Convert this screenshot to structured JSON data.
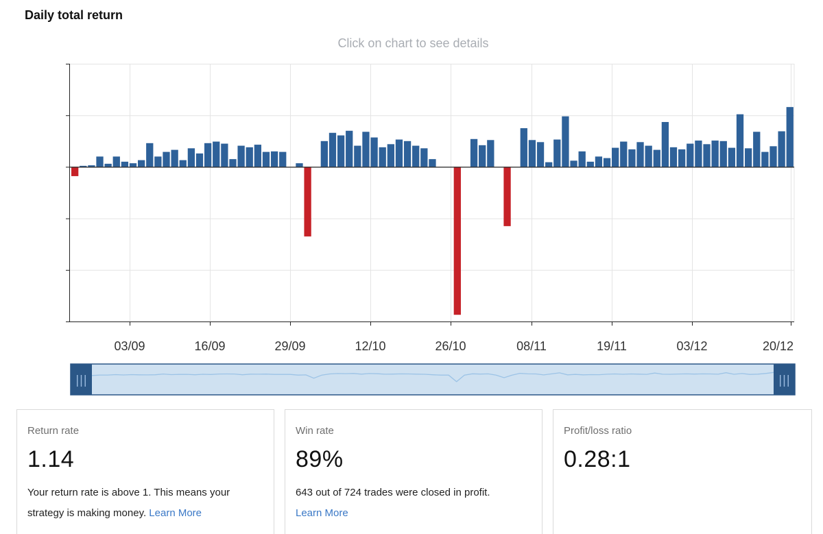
{
  "title": "Daily total return",
  "hint": "Click on chart to see details",
  "colors": {
    "positive": "#2e6199",
    "negative": "#c62127",
    "grid": "#e4e4e4",
    "axis": "#222222",
    "navigator_fill": "#cfe1f1",
    "navigator_border": "#2b5787",
    "navigator_handle": "#2b5787",
    "navigator_line": "#9cc3e6",
    "link": "#3a78c6"
  },
  "chart_data": {
    "type": "bar",
    "title": "Daily total return",
    "xlabel": "",
    "ylabel": "",
    "x_tick_labels": [
      "03/09",
      "16/09",
      "29/09",
      "12/10",
      "26/10",
      "08/11",
      "19/11",
      "03/12",
      "20/12"
    ],
    "y_ticks": [
      2,
      1,
      0,
      -1,
      -2,
      -3
    ],
    "ylim": [
      -3,
      2
    ],
    "y_tick_labels_visible": false,
    "grid": true,
    "values": [
      -0.18,
      0.02,
      0.03,
      0.2,
      0.06,
      0.2,
      0.1,
      0.07,
      0.13,
      0.46,
      0.2,
      0.29,
      0.33,
      0.13,
      0.36,
      0.26,
      0.46,
      0.49,
      0.45,
      0.15,
      0.41,
      0.38,
      0.43,
      0.29,
      0.3,
      0.29,
      0,
      0.07,
      -1.35,
      0,
      0.5,
      0.66,
      0.61,
      0.7,
      0.41,
      0.68,
      0.57,
      0.38,
      0.44,
      0.53,
      0.5,
      0.41,
      0.36,
      0.15,
      0,
      0,
      -2.87,
      0,
      0.54,
      0.42,
      0.52,
      0,
      -1.15,
      0,
      0.75,
      0.52,
      0.48,
      0.09,
      0.53,
      0.98,
      0.12,
      0.3,
      0.1,
      0.2,
      0.17,
      0.37,
      0.49,
      0.34,
      0.48,
      0.41,
      0.33,
      0.87,
      0.38,
      0.34,
      0.45,
      0.51,
      0.44,
      0.51,
      0.5,
      0.37,
      1.02,
      0.36,
      0.68,
      0.29,
      0.4,
      0.69,
      1.16
    ]
  },
  "navigator": {
    "handle_glyph": "|||"
  },
  "cards": [
    {
      "label": "Return rate",
      "value": "1.14",
      "desc": "Your return rate is above 1. This means your strategy is making money.",
      "link": "Learn More"
    },
    {
      "label": "Win rate",
      "value": "89%",
      "desc": "643 out of 724 trades were closed in profit.",
      "link": "Learn More"
    },
    {
      "label": "Profit/loss ratio",
      "value": "0.28:1"
    }
  ]
}
